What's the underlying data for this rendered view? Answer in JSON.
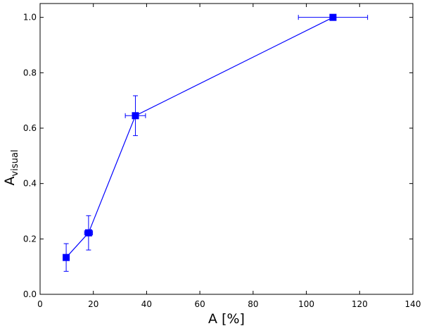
{
  "chart_data": {
    "type": "scatter",
    "title": "",
    "xlabel": "A [%]",
    "ylabel_main": "A",
    "ylabel_sub": "visual",
    "xlim": [
      0,
      140
    ],
    "ylim": [
      0.0,
      1.05
    ],
    "x_ticks": [
      0,
      20,
      40,
      60,
      80,
      100,
      120,
      140
    ],
    "x_tick_labels": [
      "0",
      "20",
      "40",
      "60",
      "80",
      "100",
      "120",
      "140"
    ],
    "y_ticks": [
      0.0,
      0.2,
      0.4,
      0.6,
      0.8,
      1.0
    ],
    "y_tick_labels": [
      "0.0",
      "0.2",
      "0.4",
      "0.6",
      "0.8",
      "1.0"
    ],
    "grid": false,
    "color": "#0000ff",
    "marker": "square",
    "connected": true,
    "series": [
      {
        "points": [
          {
            "x": 9.8,
            "y": 0.133,
            "xerr": 0.8,
            "yerr": 0.05
          },
          {
            "x": 18.2,
            "y": 0.222,
            "xerr": 1.5,
            "yerr": 0.062
          },
          {
            "x": 35.8,
            "y": 0.645,
            "xerr": 3.8,
            "yerr": 0.072
          },
          {
            "x": 110.0,
            "y": 1.0,
            "xerr": 13.0,
            "yerr": 0.0
          }
        ]
      }
    ]
  }
}
